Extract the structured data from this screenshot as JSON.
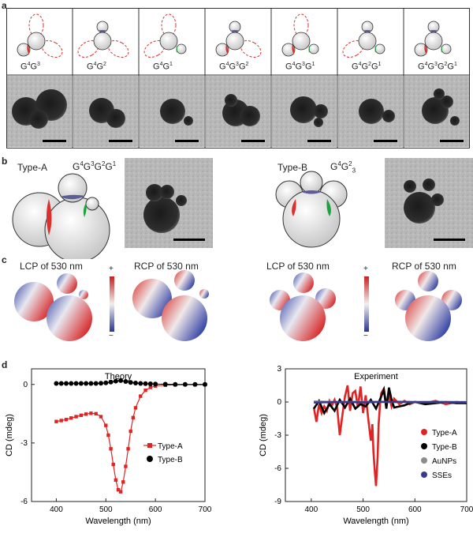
{
  "panels": {
    "a": "a",
    "b": "b",
    "c": "c",
    "d": "d"
  },
  "panel_a": {
    "configs": [
      {
        "base": "G",
        "s1": "4",
        "mid": "G",
        "s2": "3"
      },
      {
        "base": "G",
        "s1": "4",
        "mid": "G",
        "s2": "2"
      },
      {
        "base": "G",
        "s1": "4",
        "mid": "G",
        "s2": "1"
      },
      {
        "base": "G",
        "s1": "4",
        "mid": "G",
        "s2": "3",
        "mid2": "G",
        "s3": "2"
      },
      {
        "base": "G",
        "s1": "4",
        "mid": "G",
        "s2": "3",
        "mid2": "G",
        "s3": "1"
      },
      {
        "base": "G",
        "s1": "4",
        "mid": "G",
        "s2": "2",
        "mid2": "G",
        "s3": "1"
      },
      {
        "base": "G",
        "s1": "4",
        "mid": "G",
        "s2": "3",
        "mid2": "G",
        "s3": "2",
        "mid3": "G",
        "s4": "1"
      }
    ]
  },
  "panel_b": {
    "typeA": "Type-A",
    "typeA_formula": {
      "b": "G",
      "s1": "4",
      "m": "G",
      "s2": "3",
      "m2": "G",
      "s3": "2",
      "m3": "G",
      "s4": "1"
    },
    "typeB": "Type-B",
    "typeB_formula": {
      "b": "G",
      "s1": "4",
      "m": "G",
      "s2": "2",
      "sub": "3"
    }
  },
  "panel_c": {
    "lcp_a": "LCP of 530 nm",
    "rcp_a": "RCP of 530 nm",
    "lcp_b": "LCP of 530 nm",
    "rcp_b": "RCP of 530 nm",
    "plus": "+",
    "minus": "−"
  },
  "chart_data": [
    {
      "type": "line",
      "title": "Theory",
      "xlabel": "Wavelength (nm)",
      "ylabel": "CD (mdeg)",
      "xlim": [
        350,
        700
      ],
      "ylim": [
        -6,
        0.8
      ],
      "xticks": [
        400,
        500,
        600,
        700
      ],
      "yticks": [
        0,
        -3,
        -6
      ],
      "legend_position": "lower-right",
      "series": [
        {
          "name": "Type-A",
          "color": "#e02424",
          "marker": "square",
          "x": [
            400,
            410,
            420,
            430,
            440,
            450,
            460,
            470,
            480,
            490,
            500,
            505,
            510,
            515,
            520,
            525,
            530,
            535,
            540,
            545,
            550,
            555,
            560,
            570,
            580,
            590,
            600,
            620,
            640,
            660,
            680,
            700
          ],
          "y": [
            -1.9,
            -1.85,
            -1.8,
            -1.72,
            -1.65,
            -1.58,
            -1.52,
            -1.48,
            -1.5,
            -1.65,
            -2.1,
            -2.6,
            -3.3,
            -4.1,
            -4.9,
            -5.4,
            -5.5,
            -5.0,
            -4.2,
            -3.3,
            -2.4,
            -1.7,
            -1.2,
            -0.6,
            -0.3,
            -0.15,
            -0.08,
            -0.04,
            -0.02,
            -0.01,
            -0.01,
            -0.01
          ]
        },
        {
          "name": "Type-B",
          "color": "#000000",
          "marker": "circle",
          "x": [
            400,
            410,
            420,
            430,
            440,
            450,
            460,
            470,
            480,
            490,
            500,
            510,
            520,
            530,
            540,
            550,
            560,
            570,
            580,
            590,
            600,
            620,
            640,
            660,
            680,
            700
          ],
          "y": [
            0.05,
            0.05,
            0.05,
            0.05,
            0.05,
            0.05,
            0.05,
            0.05,
            0.05,
            0.06,
            0.08,
            0.12,
            0.17,
            0.2,
            0.15,
            0.1,
            0.07,
            0.05,
            0.04,
            0.03,
            0.02,
            0.01,
            0.0,
            0.0,
            0.0,
            0.0
          ]
        }
      ]
    },
    {
      "type": "line",
      "title": "Experiment",
      "xlabel": "Wavelength (nm)",
      "ylabel": "CD (mdeg)",
      "xlim": [
        350,
        700
      ],
      "ylim": [
        -9,
        3
      ],
      "xticks": [
        400,
        500,
        600,
        700
      ],
      "yticks": [
        3,
        0,
        -3,
        -6,
        -9
      ],
      "legend_position": "lower-right",
      "series": [
        {
          "name": "Type-A",
          "color": "#e02424",
          "x": [
            405,
            410,
            415,
            420,
            425,
            430,
            435,
            440,
            445,
            450,
            455,
            460,
            465,
            470,
            475,
            480,
            485,
            490,
            495,
            500,
            505,
            510,
            515,
            518,
            520,
            523,
            525,
            528,
            530,
            533,
            535,
            540,
            545,
            550,
            555,
            560,
            570,
            580,
            590,
            600,
            620,
            640,
            660,
            680,
            700
          ],
          "y": [
            -0.5,
            -1.8,
            -0.2,
            -1.0,
            -0.4,
            -0.8,
            0.1,
            -0.3,
            0.2,
            -0.5,
            -3.0,
            -1.2,
            0.5,
            1.5,
            -0.8,
            0.8,
            1.0,
            -0.5,
            1.4,
            -1.0,
            0.6,
            -1.5,
            -3.5,
            -2.0,
            -4.5,
            -6.5,
            -7.6,
            -5.0,
            -2.0,
            0.0,
            0.8,
            1.2,
            -0.2,
            0.6,
            -0.4,
            0.3,
            -0.2,
            0.1,
            -0.2,
            0.0,
            -0.1,
            0.1,
            -0.2,
            0.0,
            -0.1
          ]
        },
        {
          "name": "Type-B",
          "color": "#000000",
          "x": [
            405,
            415,
            425,
            435,
            445,
            455,
            465,
            475,
            485,
            495,
            505,
            515,
            525,
            535,
            540,
            545,
            550,
            555,
            560,
            570,
            580,
            590,
            600,
            620,
            640,
            660,
            680,
            700
          ],
          "y": [
            -0.6,
            0.1,
            -1.0,
            -0.2,
            -0.8,
            0.2,
            -0.5,
            0.3,
            -0.6,
            -0.2,
            -0.4,
            0.2,
            -0.6,
            0.5,
            1.1,
            -0.6,
            1.3,
            0.2,
            -0.5,
            -0.4,
            -0.3,
            -0.1,
            0.0,
            -0.2,
            -0.1,
            0.0,
            -0.1,
            -0.1
          ]
        },
        {
          "name": "AuNPs",
          "color": "#8c8c8c",
          "x": [
            405,
            450,
            500,
            550,
            600,
            650,
            700
          ],
          "y": [
            0.05,
            0.0,
            0.02,
            0.0,
            -0.02,
            0.0,
            0.0
          ]
        },
        {
          "name": "SSEs",
          "color": "#3a3a8c",
          "x": [
            405,
            450,
            500,
            550,
            600,
            650,
            700
          ],
          "y": [
            -0.05,
            0.0,
            -0.02,
            0.02,
            0.0,
            0.0,
            -0.02
          ]
        }
      ]
    }
  ],
  "colors": {
    "red_patch": "#d9322e",
    "green_patch": "#1aa33a",
    "blue_patch": "#5c5c99"
  }
}
